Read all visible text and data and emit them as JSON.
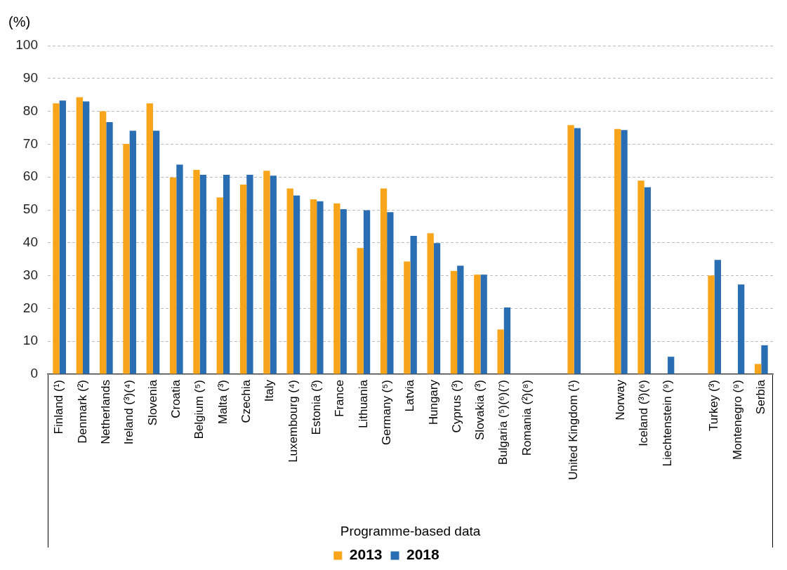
{
  "chart_data": {
    "type": "bar",
    "ylabel": "(%)",
    "xlabel": "Programme-based data",
    "categories": [
      "Finland (¹)",
      "Denmark (²)",
      "Netherlands",
      "Ireland (³)(⁴)",
      "Slovenia",
      "Croatia",
      "Belgium (⁵)",
      "Malta (³)",
      "Czechia",
      "Italy",
      "Luxembourg (⁴)",
      "Estonia (³)",
      "France",
      "Lithuania",
      "Germany (⁵)",
      "Latvia",
      "Hungary",
      "Cyprus (³)",
      "Slovakia (³)",
      "Bulgaria (⁵)(⁶)(⁷)",
      "Romania (²)(⁸)",
      null,
      "United Kingdom (¹)",
      null,
      "Norway",
      "Iceland (³)(⁶)",
      "Liechtenstein (⁹)",
      null,
      "Turkey (³)",
      "Montenegro (⁹)",
      "Serbia"
    ],
    "series": [
      {
        "name": "2013",
        "color": "#f9a51b",
        "values": [
          82.4,
          84.3,
          80.0,
          70.1,
          82.4,
          59.9,
          62.2,
          53.8,
          57.7,
          61.9,
          56.5,
          53.2,
          52.0,
          38.4,
          56.5,
          34.3,
          42.9,
          31.4,
          30.3,
          13.6,
          null,
          null,
          75.8,
          null,
          74.6,
          58.9,
          null,
          null,
          30.0,
          null,
          3.1
        ]
      },
      {
        "name": "2018",
        "color": "#296eb3",
        "values": [
          83.3,
          83.0,
          76.7,
          74.1,
          74.1,
          63.8,
          60.7,
          60.7,
          60.7,
          60.4,
          54.4,
          52.6,
          50.2,
          49.9,
          49.3,
          42.1,
          39.9,
          33.0,
          30.3,
          20.3,
          null,
          null,
          74.9,
          null,
          74.3,
          56.9,
          5.3,
          null,
          34.8,
          27.3,
          8.8
        ]
      }
    ],
    "ylim": [
      0,
      100
    ],
    "yticks": [
      0,
      10,
      20,
      30,
      40,
      50,
      60,
      70,
      80,
      90,
      100
    ],
    "grid": "y",
    "legend": "bottom"
  }
}
